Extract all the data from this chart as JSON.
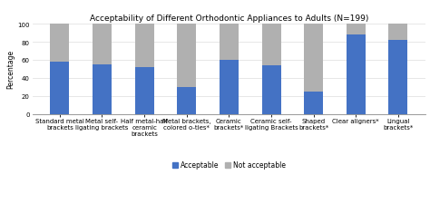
{
  "title": "Acceptability of Different Orthodontic Appliances to Adults (N=199)",
  "ylabel": "Percentage",
  "categories": [
    "Standard metal\nbrackets",
    "Metal self-\nligating brackets",
    "Half metal-half\nceramic\nbrackets",
    "Metal brackets,\ncolored o-ties*",
    "Ceramic\nbrackets*",
    "Ceramic self-\nligating Brackets",
    "Shaped\nbrackets*",
    "Clear aligners*",
    "Lingual\nbrackets*"
  ],
  "acceptable": [
    58,
    55,
    52,
    30,
    60,
    54,
    25,
    88,
    82
  ],
  "not_acceptable": [
    42,
    45,
    48,
    70,
    40,
    46,
    75,
    12,
    18
  ],
  "color_acceptable": "#4472C4",
  "color_not_acceptable": "#B0B0B0",
  "ylim": [
    0,
    100
  ],
  "yticks": [
    0,
    20,
    40,
    60,
    80,
    100
  ],
  "bar_width": 0.45,
  "legend_labels": [
    "Acceptable",
    "Not acceptable"
  ],
  "background_color": "#ffffff",
  "title_fontsize": 6.5,
  "axis_label_fontsize": 5.5,
  "tick_fontsize": 5.0,
  "legend_fontsize": 5.5
}
